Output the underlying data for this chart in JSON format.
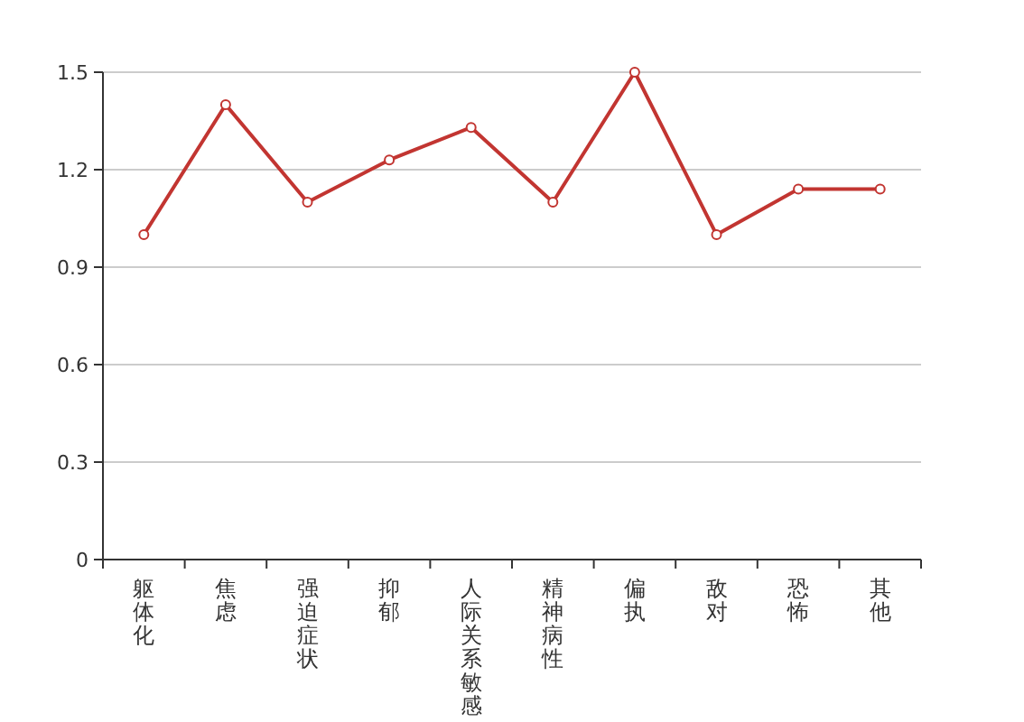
{
  "chart_data": {
    "type": "line",
    "categories": [
      "躯体化",
      "焦虑",
      "强迫症状",
      "抑郁",
      "人际关系敏感",
      "精神病性",
      "偏执",
      "敌对",
      "恐怖",
      "其他"
    ],
    "series": [
      {
        "color": "#c23531",
        "values": [
          1.0,
          1.4,
          1.1,
          1.23,
          1.33,
          1.1,
          1.5,
          1.0,
          1.14,
          1.14
        ]
      }
    ],
    "ylim": [
      0,
      1.5
    ],
    "yticks": [
      0,
      0.3,
      0.6,
      0.9,
      1.2,
      1.5
    ],
    "grid": "y",
    "marker": "circle"
  }
}
